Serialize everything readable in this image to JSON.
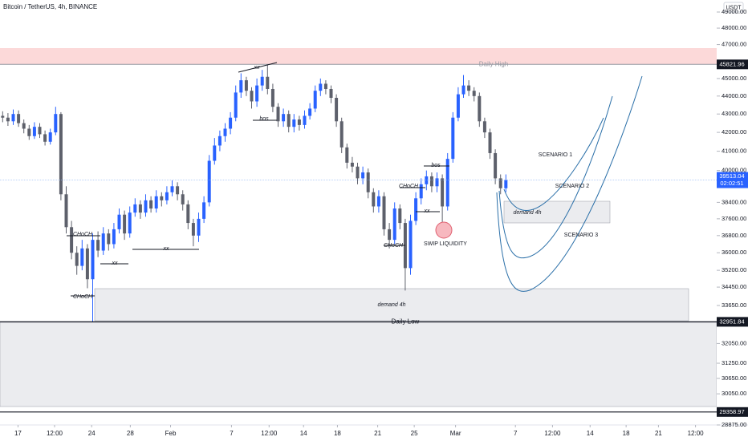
{
  "chart_data": {
    "type": "candlestick",
    "title": "Bitcoin / TetherUS, 4h, BINANCE",
    "currency": "USDT",
    "log": true,
    "up_color": "#2962ff",
    "down_color": "#5d606b",
    "xlim": [
      -0.5,
      134.8
    ],
    "xticks": [
      {
        "value": 2.9,
        "label": "17"
      },
      {
        "value": 9.8,
        "label": "12:00"
      },
      {
        "value": 16.8,
        "label": "24"
      },
      {
        "value": 24.1,
        "label": "28"
      },
      {
        "value": 31.7,
        "label": "Feb"
      },
      {
        "value": 43.2,
        "label": "7"
      },
      {
        "value": 50.3,
        "label": "12:00"
      },
      {
        "value": 56.8,
        "label": "14"
      },
      {
        "value": 63.2,
        "label": "18"
      },
      {
        "value": 70.8,
        "label": "21"
      },
      {
        "value": 77.7,
        "label": "25"
      },
      {
        "value": 85.5,
        "label": "Mar"
      },
      {
        "value": 96.8,
        "label": "7"
      },
      {
        "value": 103.8,
        "label": "12:00"
      },
      {
        "value": 110.9,
        "label": "14"
      },
      {
        "value": 117.7,
        "label": "18"
      },
      {
        "value": 123.8,
        "label": "21"
      },
      {
        "value": 130.8,
        "label": "12:00"
      }
    ],
    "ylim": [
      28875,
      49760
    ],
    "yticks": [
      {
        "value": 49000,
        "label": "49000.00"
      },
      {
        "value": 48000,
        "label": "48000.00"
      },
      {
        "value": 47000,
        "label": "47000.00"
      },
      {
        "value": 45000,
        "label": "45000.00"
      },
      {
        "value": 44000,
        "label": "44000.00"
      },
      {
        "value": 43000,
        "label": "43000.00"
      },
      {
        "value": 42000,
        "label": "42000.00"
      },
      {
        "value": 41000,
        "label": "41000.00"
      },
      {
        "value": 40000,
        "label": "40000.00"
      },
      {
        "value": 38400,
        "label": "38400.00"
      },
      {
        "value": 37600,
        "label": "37600.00"
      },
      {
        "value": 36800,
        "label": "36800.00"
      },
      {
        "value": 36000,
        "label": "36000.00"
      },
      {
        "value": 35200,
        "label": "35200.00"
      },
      {
        "value": 34450,
        "label": "34450.00"
      },
      {
        "value": 33650,
        "label": "33650.00"
      },
      {
        "value": 32050,
        "label": "32050.00"
      },
      {
        "value": 31250,
        "label": "31250.00"
      },
      {
        "value": 30650,
        "label": "30650.00"
      },
      {
        "value": 30050,
        "label": "30050.00"
      },
      {
        "value": 28875,
        "label": "28875.00"
      }
    ],
    "open": [
      42900,
      42800,
      42600,
      43000,
      42500,
      42200,
      41800,
      42300,
      41900,
      41500,
      42000,
      43000,
      38800,
      37200,
      36000,
      35400,
      36200,
      34800,
      36600,
      36100,
      36900,
      36400,
      37100,
      37800,
      36900,
      37900,
      38300,
      37900,
      38500,
      38100,
      38700,
      38500,
      38900,
      39200,
      38800,
      38300,
      37400,
      36800,
      37600,
      38400,
      40500,
      41300,
      41800,
      42200,
      42800,
      44200,
      44900,
      44300,
      43700,
      44600,
      45100,
      44400,
      43400,
      42600,
      43000,
      42300,
      42700,
      42400,
      42900,
      43300,
      44300,
      44700,
      44400,
      43900,
      42600,
      41200,
      40400,
      40200,
      39600,
      39900,
      38900,
      38200,
      38700,
      37100,
      36600,
      38100,
      37400,
      35300,
      37500,
      38600,
      39300,
      39700,
      39200,
      39600,
      38200,
      40600,
      42800,
      44100,
      44600,
      44300,
      44000,
      42600,
      42000,
      40900,
      39600,
      39100
    ],
    "high": [
      43150,
      43050,
      43250,
      43200,
      42700,
      42400,
      42550,
      42500,
      42100,
      42200,
      43400,
      43100,
      39200,
      37500,
      36300,
      36600,
      36400,
      36900,
      37000,
      37200,
      37100,
      37400,
      38100,
      38000,
      38200,
      38600,
      38500,
      38800,
      38700,
      39000,
      38900,
      39200,
      39500,
      39400,
      39000,
      38500,
      37600,
      37900,
      38700,
      40800,
      41700,
      42100,
      42500,
      43100,
      44600,
      45300,
      45100,
      44500,
      45000,
      45500,
      45821.96,
      44700,
      43600,
      43300,
      43200,
      43000,
      42900,
      43200,
      43600,
      44600,
      45000,
      44900,
      44600,
      44100,
      42800,
      41400,
      40700,
      40400,
      40200,
      40100,
      39100,
      39000,
      38900,
      37400,
      38400,
      38300,
      37600,
      37800,
      38900,
      39600,
      40000,
      39900,
      39900,
      39800,
      40900,
      43100,
      44500,
      45200,
      44900,
      44500,
      44200,
      42800,
      42200,
      41100,
      39800,
      39800
    ],
    "low": [
      42550,
      42350,
      42400,
      42300,
      41950,
      41600,
      41650,
      41700,
      41300,
      41350,
      41850,
      38500,
      36900,
      35700,
      35000,
      35200,
      34400,
      32951.84,
      35800,
      35900,
      36100,
      36200,
      36900,
      36600,
      36700,
      37700,
      37600,
      37700,
      37900,
      37900,
      38200,
      38300,
      38700,
      38500,
      38000,
      37100,
      36300,
      36500,
      37400,
      38200,
      40300,
      41000,
      41500,
      41900,
      42600,
      43900,
      44000,
      43300,
      43400,
      44300,
      44100,
      43100,
      42300,
      42300,
      42000,
      42000,
      42100,
      42200,
      42700,
      43100,
      44000,
      44100,
      43600,
      42300,
      40900,
      40100,
      39900,
      39300,
      39300,
      38600,
      37900,
      37900,
      36800,
      36200,
      36400,
      37100,
      34300,
      35000,
      37300,
      38300,
      39000,
      38900,
      38900,
      37300,
      38000,
      40400,
      42600,
      43900,
      44000,
      43700,
      42300,
      41700,
      40600,
      39300,
      38800,
      38900
    ],
    "close": [
      42800,
      42600,
      43000,
      42500,
      42200,
      41800,
      42300,
      41900,
      41500,
      42000,
      43000,
      38800,
      37200,
      36000,
      35400,
      36200,
      34800,
      36600,
      36100,
      36900,
      36400,
      37100,
      37800,
      36900,
      37900,
      38300,
      37900,
      38500,
      38100,
      38700,
      38500,
      38900,
      39200,
      38800,
      38300,
      37400,
      36800,
      37600,
      38400,
      40500,
      41300,
      41800,
      42200,
      42800,
      44200,
      44900,
      44300,
      43700,
      44600,
      45100,
      44400,
      43400,
      42600,
      43000,
      42300,
      42700,
      42400,
      42900,
      43300,
      44300,
      44700,
      44400,
      43900,
      42600,
      41200,
      40400,
      40200,
      39600,
      39900,
      38900,
      38200,
      38700,
      37100,
      36600,
      38100,
      37400,
      35300,
      37500,
      38600,
      39300,
      39700,
      39200,
      39600,
      38200,
      40600,
      42800,
      44100,
      44600,
      44300,
      44000,
      42600,
      42000,
      40900,
      39600,
      39100,
      39513.04
    ],
    "countdown": "02:02:51",
    "levels": [
      {
        "price": 45821.96,
        "text": "Daily High",
        "color": "#9598a1"
      },
      {
        "price": 32951.84,
        "text": "Daily Low",
        "color": "#131722"
      },
      {
        "price": 29358.97,
        "color": "#131722"
      }
    ],
    "notes": [
      "xx",
      "bos",
      "CHoCH",
      "xx",
      "xx",
      "CHoCH",
      "CHoCH",
      "CHoCH",
      "xx",
      "bos"
    ],
    "zones": [
      "demand 4h",
      "demand 4h"
    ],
    "swip": "SWIP LIQUIDITY",
    "scenarios": [
      "SCENARIO 1",
      "SCENARIO 2",
      "SCENARIO 3"
    ]
  }
}
